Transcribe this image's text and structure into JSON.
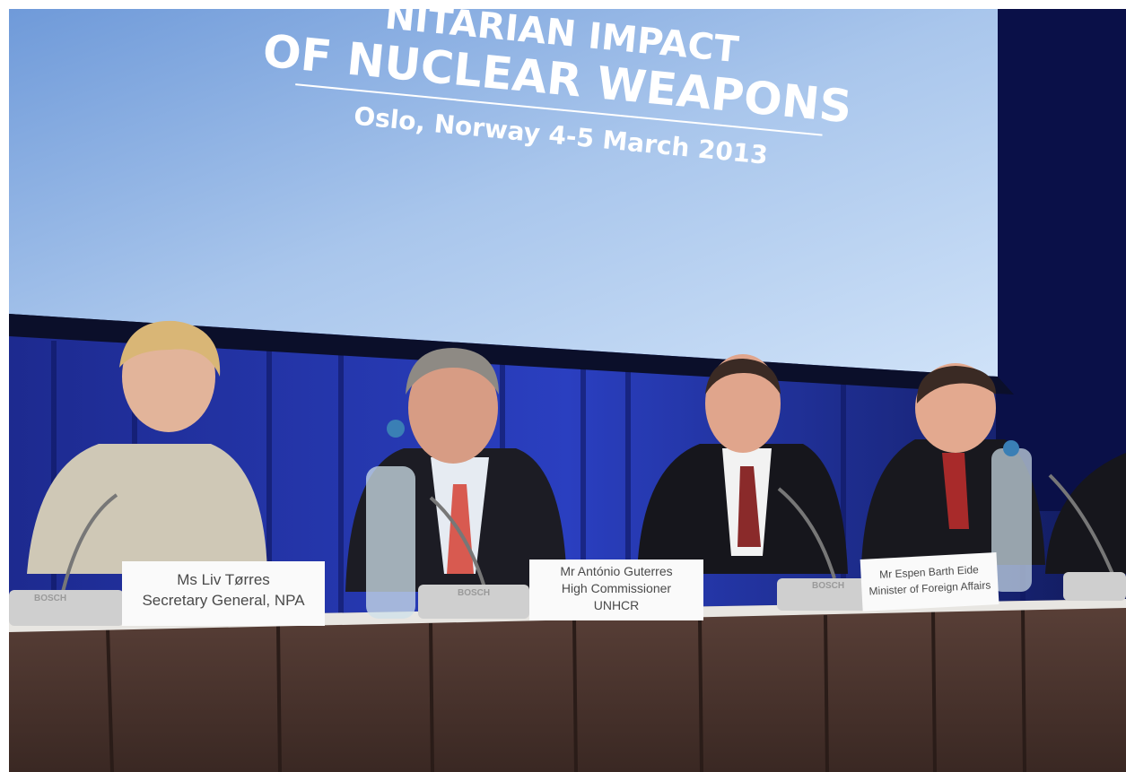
{
  "screen": {
    "title_line1": "NITARIAN IMPACT",
    "title_line2": "OF NUCLEAR WEAPONS",
    "subtitle": "Oslo, Norway 4-5 March 2013"
  },
  "name_cards": [
    {
      "name": "Ms Liv Tørres",
      "lines": [
        "Secretary General, NPA"
      ]
    },
    {
      "name": "Mr António Guterres",
      "lines": [
        "High Commissioner",
        "UNHCR"
      ]
    },
    {
      "name": "Mr Espen Barth Eide",
      "lines": [
        "Minister of Foreign Affairs"
      ]
    }
  ],
  "microphone_brand": "BOSCH"
}
